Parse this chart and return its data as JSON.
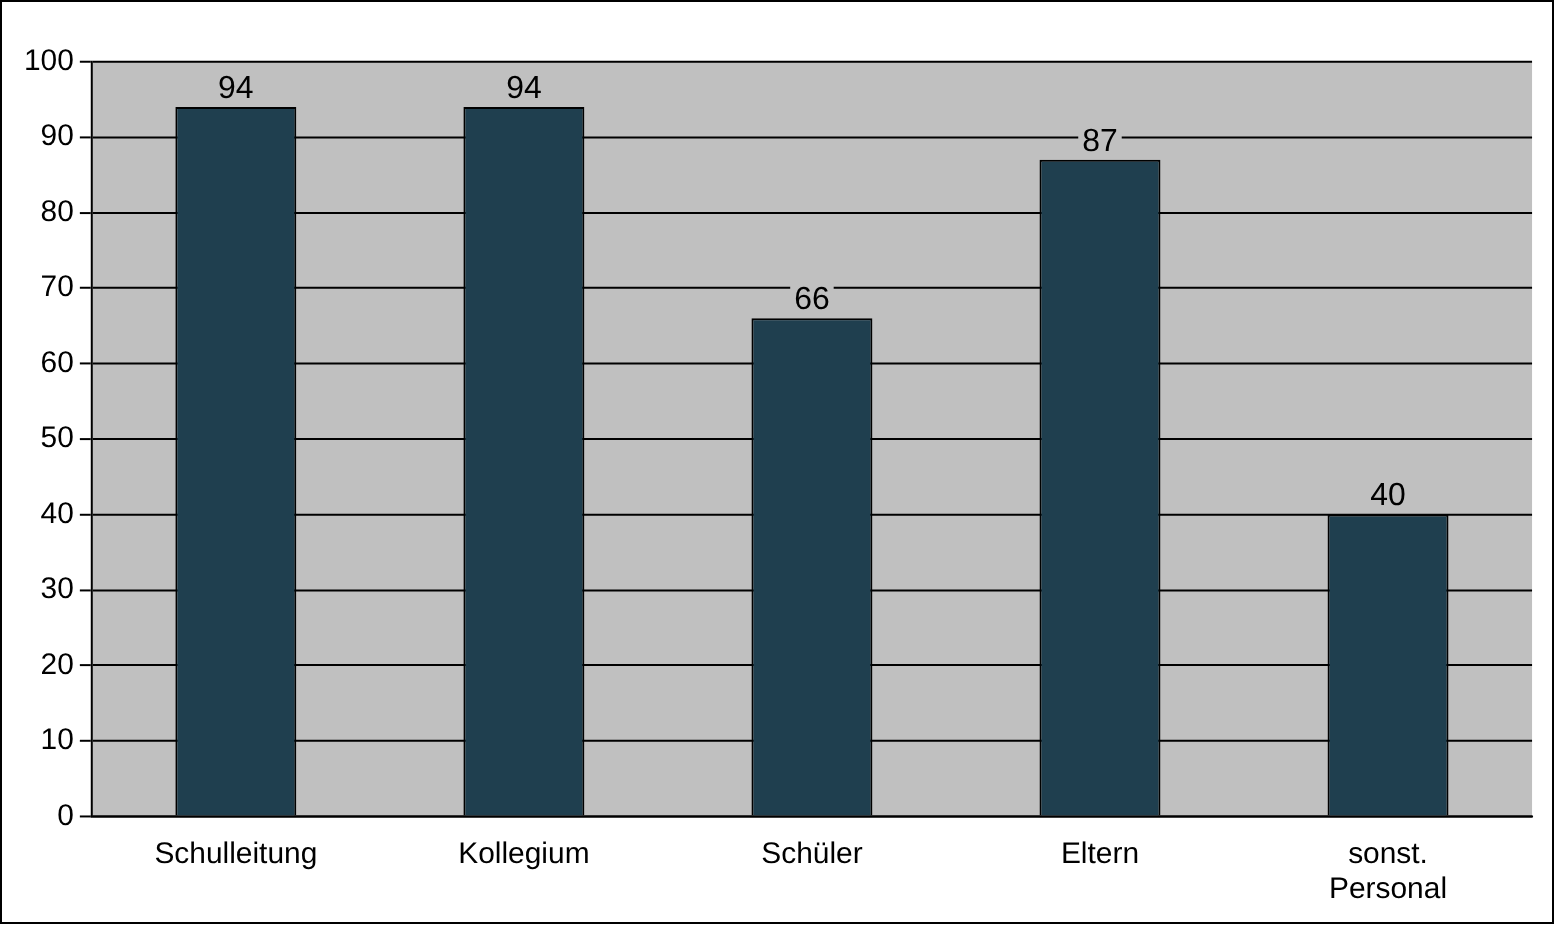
{
  "chart_data": {
    "type": "bar",
    "categories": [
      "Schulleitung",
      "Kollegium",
      "Schüler",
      "Eltern",
      "sonst. Personal"
    ],
    "values": [
      94,
      94,
      66,
      87,
      40
    ],
    "color": "#1f3f4f",
    "ylim": [
      0,
      100
    ],
    "yticks": [
      0,
      10,
      20,
      30,
      40,
      50,
      60,
      70,
      80,
      90,
      100
    ],
    "grid": "y",
    "data_labels": true,
    "legend": false
  }
}
